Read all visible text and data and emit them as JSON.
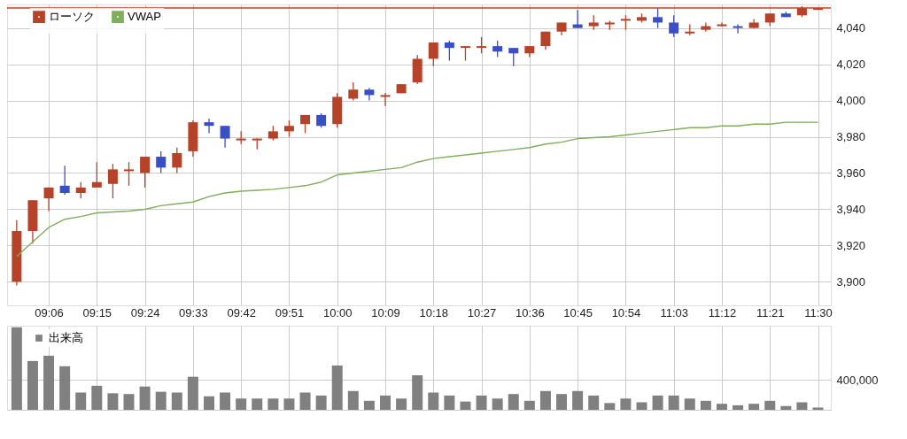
{
  "chart_data": [
    {
      "type": "candlestick",
      "x": [
        9,
        9.05,
        9.1,
        9.15,
        9.2,
        9.25,
        9.3,
        9.35,
        9.4,
        9.45,
        9.5,
        9.55,
        9.6,
        9.65,
        9.7,
        9.75,
        9.8,
        9.85,
        9.9,
        9.95,
        10,
        10.05,
        10.1,
        10.15,
        10.2,
        10.25,
        10.3,
        10.35,
        10.4,
        10.45,
        10.5,
        10.55,
        10.6,
        10.65,
        10.7,
        10.75,
        10.8,
        10.85,
        10.9,
        10.95,
        11,
        11.05,
        11.1,
        11.15,
        11.2,
        11.25,
        11.3,
        11.35,
        11.4,
        11.45,
        11.5
      ],
      "xlim": [
        8.97,
        11.54
      ],
      "xticks": [
        {
          "value": 9.1,
          "label": "09:06"
        },
        {
          "value": 9.25,
          "label": "09:15"
        },
        {
          "value": 9.4,
          "label": "09:24"
        },
        {
          "value": 9.55,
          "label": "09:33"
        },
        {
          "value": 9.7,
          "label": "09:42"
        },
        {
          "value": 9.85,
          "label": "09:51"
        },
        {
          "value": 10,
          "label": "10:00"
        },
        {
          "value": 10.15,
          "label": "10:09"
        },
        {
          "value": 10.3,
          "label": "10:18"
        },
        {
          "value": 10.45,
          "label": "10:27"
        },
        {
          "value": 10.6,
          "label": "10:36"
        },
        {
          "value": 10.75,
          "label": "10:45"
        },
        {
          "value": 10.9,
          "label": "10:54"
        },
        {
          "value": 11.05,
          "label": "11:03"
        },
        {
          "value": 11.2,
          "label": "11:12"
        },
        {
          "value": 11.35,
          "label": "11:21"
        },
        {
          "value": 11.5,
          "label": "11:30"
        }
      ],
      "ylim": [
        3887,
        4053
      ],
      "yticks": [
        {
          "value": 3900,
          "label": "3,900"
        },
        {
          "value": 3920,
          "label": "3,920"
        },
        {
          "value": 3940,
          "label": "3,940"
        },
        {
          "value": 3960,
          "label": "3,960"
        },
        {
          "value": 3980,
          "label": "3,980"
        },
        {
          "value": 4000,
          "label": "4,000"
        },
        {
          "value": 4020,
          "label": "4,020"
        },
        {
          "value": 4040,
          "label": "4,040"
        }
      ],
      "grid": true,
      "legend": "top left",
      "ref_lines": [
        {
          "axis": "y",
          "value": 4051,
          "color": "#d9381e"
        }
      ],
      "series": [
        {
          "name": "ローソク",
          "type": "candlestick",
          "color": "#b5432a",
          "ohlc": [
            [
              3900,
              3934,
              3898,
              3928
            ],
            [
              3928,
              3945,
              3921,
              3945
            ],
            [
              3946,
              3952,
              3939,
              3952
            ],
            [
              3953,
              3964,
              3948,
              3949
            ],
            [
              3949,
              3955,
              3946,
              3952
            ],
            [
              3952,
              3966,
              3952,
              3955
            ],
            [
              3954,
              3965,
              3946,
              3962
            ],
            [
              3961,
              3966,
              3953,
              3962
            ],
            [
              3960,
              3969,
              3952,
              3969
            ],
            [
              3969,
              3972,
              3960,
              3963
            ],
            [
              3963,
              3974,
              3960,
              3971
            ],
            [
              3972,
              3989,
              3969,
              3988
            ],
            [
              3988,
              3990,
              3982,
              3986
            ],
            [
              3986,
              3986,
              3974,
              3979
            ],
            [
              3978,
              3983,
              3976,
              3979
            ],
            [
              3978,
              3979,
              3973,
              3979
            ],
            [
              3979,
              3986,
              3978,
              3983
            ],
            [
              3983,
              3989,
              3980,
              3986
            ],
            [
              3987,
              3992,
              3982,
              3992
            ],
            [
              3992,
              3993,
              3985,
              3986
            ],
            [
              3987,
              4004,
              3985,
              4002
            ],
            [
              4001,
              4010,
              4000,
              4006
            ],
            [
              4006,
              4007,
              4000,
              4003
            ],
            [
              4002,
              4004,
              3997,
              4003
            ],
            [
              4004,
              4009,
              4004,
              4009
            ],
            [
              4010,
              4025,
              4009,
              4023
            ],
            [
              4023,
              4032,
              4019,
              4032
            ],
            [
              4032,
              4033,
              4022,
              4029
            ],
            [
              4029,
              4030,
              4022,
              4030
            ],
            [
              4029,
              4035,
              4026,
              4030
            ],
            [
              4030,
              4033,
              4024,
              4027
            ],
            [
              4029,
              4029,
              4019,
              4026
            ],
            [
              4026,
              4030,
              4024,
              4030
            ],
            [
              4030,
              4038,
              4028,
              4038
            ],
            [
              4038,
              4043,
              4036,
              4043
            ],
            [
              4042,
              4050,
              4040,
              4040
            ],
            [
              4041,
              4047,
              4039,
              4043
            ],
            [
              4042,
              4044,
              4039,
              4043
            ],
            [
              4044,
              4047,
              4039,
              4045
            ],
            [
              4044,
              4048,
              4043,
              4046
            ],
            [
              4046,
              4051,
              4040,
              4043
            ],
            [
              4043,
              4047,
              4035,
              4037
            ],
            [
              4037,
              4042,
              4036,
              4038
            ],
            [
              4039,
              4043,
              4038,
              4041
            ],
            [
              4041,
              4043,
              4041,
              4042
            ],
            [
              4041,
              4042,
              4037,
              4040
            ],
            [
              4040,
              4045,
              4040,
              4043
            ],
            [
              4043,
              4048,
              4041,
              4048
            ],
            [
              4048,
              4049,
              4046,
              4046
            ],
            [
              4047,
              4052,
              4046,
              4051
            ],
            [
              4050,
              4051,
              4050,
              4051
            ]
          ],
          "colors": [
            "#b5432a",
            "#b5432a",
            "#b5432a",
            "#3b4fc4",
            "#b5432a",
            "#b5432a",
            "#b5432a",
            "#b5432a",
            "#b5432a",
            "#3b4fc4",
            "#b5432a",
            "#b5432a",
            "#3b4fc4",
            "#3b4fc4",
            "#b5432a",
            "#b5432a",
            "#b5432a",
            "#b5432a",
            "#b5432a",
            "#3b4fc4",
            "#b5432a",
            "#b5432a",
            "#3b4fc4",
            "#b5432a",
            "#b5432a",
            "#b5432a",
            "#b5432a",
            "#3b4fc4",
            "#b5432a",
            "#b5432a",
            "#3b4fc4",
            "#3b4fc4",
            "#b5432a",
            "#b5432a",
            "#b5432a",
            "#3b4fc4",
            "#b5432a",
            "#b5432a",
            "#b5432a",
            "#b5432a",
            "#3b4fc4",
            "#3b4fc4",
            "#b5432a",
            "#b5432a",
            "#b5432a",
            "#3b4fc4",
            "#b5432a",
            "#b5432a",
            "#3b4fc4",
            "#b5432a",
            "#b5432a"
          ]
        },
        {
          "name": "VWAP",
          "type": "line",
          "color": "#7fae5e",
          "values": [
            3914,
            3922,
            3930,
            3934.5,
            3936,
            3938,
            3938.5,
            3939,
            3940,
            3942,
            3943,
            3944,
            3947,
            3949,
            3950,
            3950.5,
            3951,
            3952,
            3953,
            3955,
            3959,
            3960,
            3961,
            3962,
            3963,
            3966,
            3968,
            3969,
            3970,
            3971,
            3972,
            3973,
            3974,
            3976,
            3977,
            3979,
            3979.5,
            3980,
            3981,
            3982,
            3983,
            3984,
            3985,
            3985,
            3986,
            3986,
            3987,
            3987,
            3988,
            3988,
            3988
          ]
        }
      ]
    },
    {
      "type": "bar",
      "tick_labels": "y",
      "grid": true,
      "legend": "top left",
      "x": [
        9,
        9.05,
        9.1,
        9.15,
        9.2,
        9.25,
        9.3,
        9.35,
        9.4,
        9.45,
        9.5,
        9.55,
        9.6,
        9.65,
        9.7,
        9.75,
        9.8,
        9.85,
        9.9,
        9.95,
        10,
        10.05,
        10.1,
        10.15,
        10.2,
        10.25,
        10.3,
        10.35,
        10.4,
        10.45,
        10.5,
        10.55,
        10.6,
        10.65,
        10.7,
        10.75,
        10.8,
        10.85,
        10.9,
        10.95,
        11,
        11.05,
        11.1,
        11.15,
        11.2,
        11.25,
        11.3,
        11.35,
        11.4,
        11.45,
        11.5
      ],
      "xlim": [
        8.97,
        11.54
      ],
      "xticks": [
        {
          "value": 9.1,
          "label": null
        },
        {
          "value": 9.25,
          "label": null
        },
        {
          "value": 9.4,
          "label": null
        },
        {
          "value": 9.55,
          "label": null
        },
        {
          "value": 9.7,
          "label": null
        },
        {
          "value": 9.85,
          "label": null
        },
        {
          "value": 10,
          "label": null
        },
        {
          "value": 10.15,
          "label": null
        },
        {
          "value": 10.3,
          "label": null
        },
        {
          "value": 10.45,
          "label": null
        },
        {
          "value": 10.6,
          "label": null
        },
        {
          "value": 10.75,
          "label": null
        },
        {
          "value": 10.9,
          "label": null
        },
        {
          "value": 11.05,
          "label": null
        },
        {
          "value": 11.2,
          "label": null
        },
        {
          "value": 11.35,
          "label": null
        },
        {
          "value": 11.5,
          "label": null
        }
      ],
      "ylim": [
        0,
        1120000
      ],
      "yticks": [
        {
          "value": 0,
          "label": null
        },
        {
          "value": 400000,
          "label": "400,000"
        }
      ],
      "series": [
        {
          "name": "出来高",
          "color": "#808080",
          "values": [
            1100000,
            650000,
            720000,
            580000,
            230000,
            320000,
            220000,
            210000,
            310000,
            240000,
            230000,
            440000,
            180000,
            230000,
            150000,
            150000,
            150000,
            150000,
            230000,
            190000,
            590000,
            250000,
            120000,
            190000,
            150000,
            460000,
            230000,
            190000,
            110000,
            190000,
            150000,
            210000,
            120000,
            250000,
            210000,
            250000,
            190000,
            90000,
            150000,
            100000,
            190000,
            190000,
            150000,
            120000,
            80000,
            60000,
            80000,
            120000,
            50000,
            100000,
            30000
          ]
        }
      ]
    }
  ]
}
